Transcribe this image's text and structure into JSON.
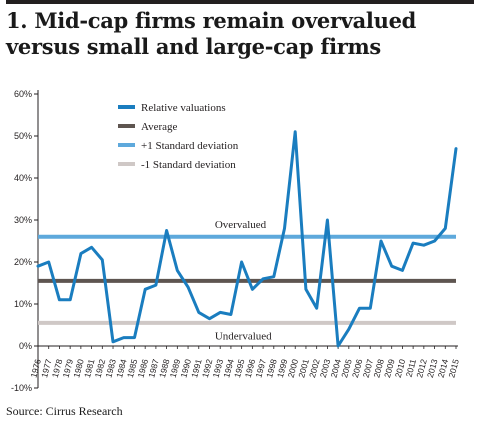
{
  "title": "1. Mid-cap firms remain overvalued versus small and large-cap firms",
  "source": "Source: Cirrus Research",
  "colors": {
    "series": "#1a7dbf",
    "average": "#5e5550",
    "plus_sd": "#5ea9dc",
    "minus_sd": "#cfc8c6",
    "axis": "#231f20"
  },
  "chart_data": {
    "type": "line",
    "ylim": [
      -10,
      60
    ],
    "yticks": [
      -10,
      0,
      10,
      20,
      30,
      40,
      50,
      60
    ],
    "ytick_labels": [
      "-10%",
      "0%",
      "10%",
      "20%",
      "30%",
      "40%",
      "50%",
      "60%"
    ],
    "x": [
      "1976",
      "1977",
      "1978",
      "1979",
      "1980",
      "1981",
      "1982",
      "1983",
      "1984",
      "1985",
      "1986",
      "1987",
      "1988",
      "1989",
      "1990",
      "1991",
      "1992",
      "1993",
      "1994",
      "1995",
      "1996",
      "1997",
      "1998",
      "1999",
      "2000",
      "2001",
      "2002",
      "2003",
      "2004",
      "2005",
      "2006",
      "2007",
      "2008",
      "2009",
      "2010",
      "2011",
      "2012",
      "2013",
      "2014",
      "2015"
    ],
    "series": [
      {
        "name": "Relative valuations",
        "color": "#1a7dbf",
        "values": [
          19,
          20,
          11,
          11,
          22,
          23.5,
          20.5,
          1,
          2,
          2,
          13.5,
          14.5,
          27.5,
          18,
          14,
          8,
          6.5,
          8,
          7.5,
          20,
          13.5,
          16,
          16.5,
          28,
          51,
          13.5,
          9,
          30,
          0,
          4,
          9,
          9,
          25,
          19,
          18,
          24.5,
          24,
          25,
          28,
          47
        ]
      }
    ],
    "reference_lines": [
      {
        "name": "Average",
        "value": 15.5,
        "color": "#5e5550"
      },
      {
        "name": "+1 Standard deviation",
        "value": 26,
        "color": "#5ea9dc"
      },
      {
        "name": "-1 Standard deviation",
        "value": 5.5,
        "color": "#cfc8c6"
      }
    ],
    "annotations": [
      {
        "text": "Overvalued",
        "x": "1992.5",
        "y": 29
      },
      {
        "text": "Undervalued",
        "x": "1992.5",
        "y": 2.5
      }
    ],
    "legend": {
      "placement": "top-left",
      "entries": [
        {
          "label": "Relative valuations",
          "color": "#1a7dbf"
        },
        {
          "label": "Average",
          "color": "#5e5550"
        },
        {
          "label": "+1 Standard deviation",
          "color": "#5ea9dc"
        },
        {
          "label": "-1 Standard deviation",
          "color": "#cfc8c6"
        }
      ]
    },
    "grid": false
  }
}
